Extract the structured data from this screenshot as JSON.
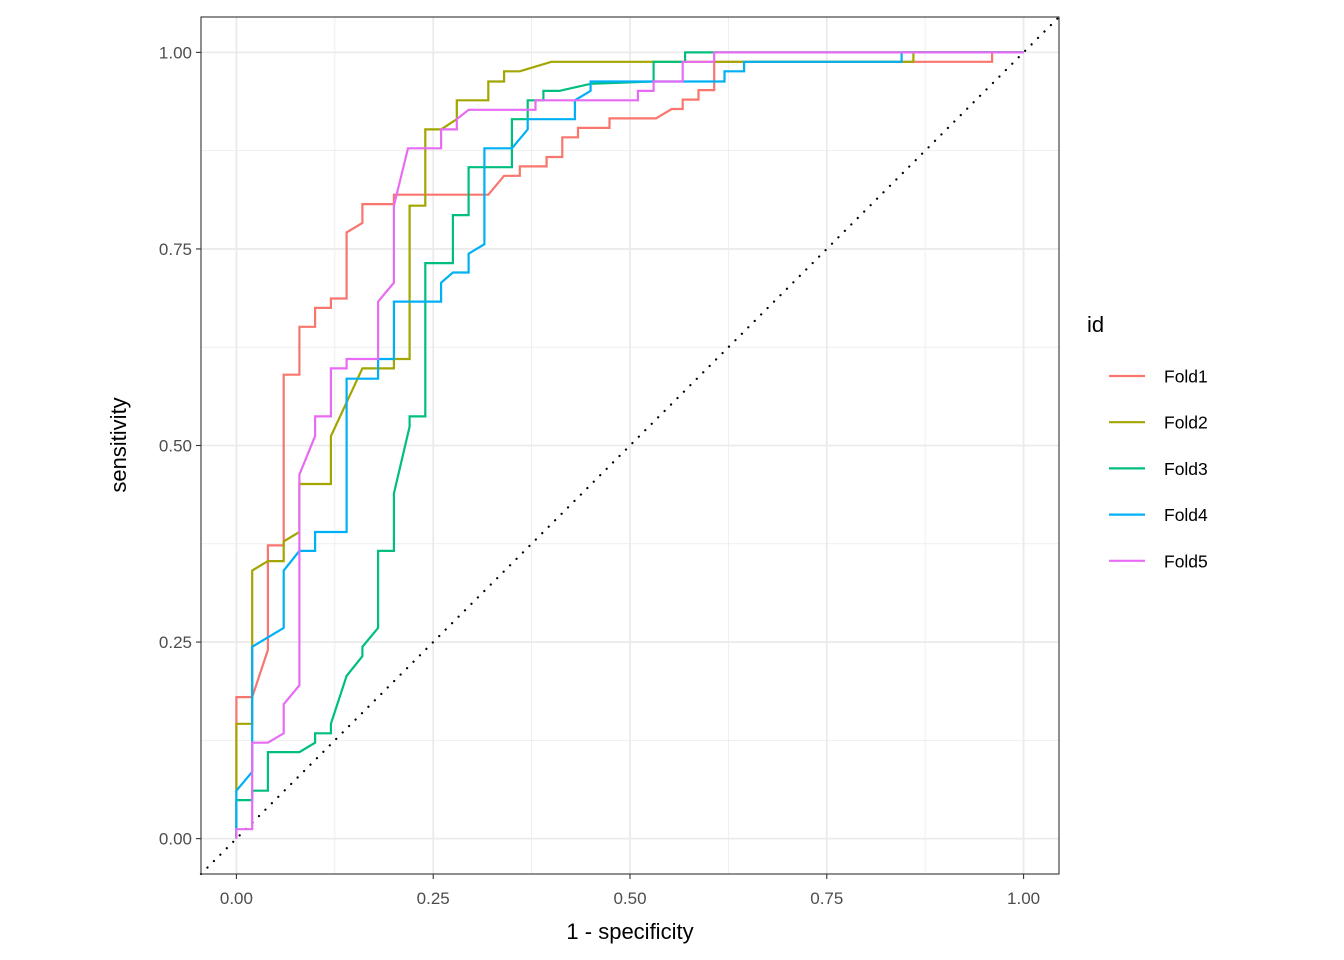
{
  "chart_data": {
    "type": "line",
    "title": "",
    "xlabel": "1 - specificity",
    "ylabel": "sensitivity",
    "xlim": [
      -0.045,
      1.045
    ],
    "ylim": [
      -0.045,
      1.045
    ],
    "x_ticks": [
      0,
      0.25,
      0.5,
      0.75,
      1
    ],
    "x_tick_labels": [
      "0.00",
      "0.25",
      "0.50",
      "0.75",
      "1.00"
    ],
    "y_ticks": [
      0,
      0.25,
      0.5,
      0.75,
      1
    ],
    "y_tick_labels": [
      "0.00",
      "0.25",
      "0.50",
      "0.75",
      "1.00"
    ],
    "grid": true,
    "legend_title": "id",
    "legend_position": "right",
    "reference_line": {
      "type": "diagonal",
      "style": "dotted",
      "color": "#000000"
    },
    "series": [
      {
        "name": "Fold1",
        "color": "#F8766D",
        "points": [
          [
            0,
            0
          ],
          [
            0,
            0.18
          ],
          [
            0.02,
            0.18
          ],
          [
            0.04,
            0.24
          ],
          [
            0.04,
            0.373
          ],
          [
            0.06,
            0.373
          ],
          [
            0.06,
            0.59
          ],
          [
            0.08,
            0.59
          ],
          [
            0.08,
            0.651
          ],
          [
            0.1,
            0.651
          ],
          [
            0.1,
            0.675
          ],
          [
            0.12,
            0.675
          ],
          [
            0.12,
            0.687
          ],
          [
            0.14,
            0.687
          ],
          [
            0.14,
            0.771
          ],
          [
            0.16,
            0.783
          ],
          [
            0.16,
            0.807
          ],
          [
            0.2,
            0.807
          ],
          [
            0.2,
            0.819
          ],
          [
            0.32,
            0.819
          ],
          [
            0.34,
            0.843
          ],
          [
            0.36,
            0.843
          ],
          [
            0.36,
            0.855
          ],
          [
            0.394,
            0.855
          ],
          [
            0.394,
            0.867
          ],
          [
            0.414,
            0.867
          ],
          [
            0.414,
            0.892
          ],
          [
            0.434,
            0.892
          ],
          [
            0.434,
            0.904
          ],
          [
            0.474,
            0.904
          ],
          [
            0.474,
            0.916
          ],
          [
            0.533,
            0.916
          ],
          [
            0.553,
            0.928
          ],
          [
            0.567,
            0.928
          ],
          [
            0.567,
            0.94
          ],
          [
            0.587,
            0.94
          ],
          [
            0.587,
            0.952
          ],
          [
            0.607,
            0.952
          ],
          [
            0.607,
            0.988
          ],
          [
            0.96,
            0.988
          ],
          [
            0.96,
            1
          ],
          [
            1,
            1
          ]
        ]
      },
      {
        "name": "Fold2",
        "color": "#A3A500",
        "points": [
          [
            0,
            0.06
          ],
          [
            0,
            0.146
          ],
          [
            0.02,
            0.146
          ],
          [
            0.02,
            0.341
          ],
          [
            0.04,
            0.353
          ],
          [
            0.06,
            0.353
          ],
          [
            0.06,
            0.378
          ],
          [
            0.08,
            0.39
          ],
          [
            0.08,
            0.451
          ],
          [
            0.12,
            0.451
          ],
          [
            0.12,
            0.512
          ],
          [
            0.16,
            0.598
          ],
          [
            0.2,
            0.598
          ],
          [
            0.2,
            0.61
          ],
          [
            0.22,
            0.61
          ],
          [
            0.22,
            0.805
          ],
          [
            0.24,
            0.805
          ],
          [
            0.24,
            0.902
          ],
          [
            0.26,
            0.902
          ],
          [
            0.26,
            0.902
          ],
          [
            0.28,
            0.915
          ],
          [
            0.28,
            0.939
          ],
          [
            0.32,
            0.939
          ],
          [
            0.32,
            0.963
          ],
          [
            0.34,
            0.963
          ],
          [
            0.34,
            0.976
          ],
          [
            0.36,
            0.976
          ],
          [
            0.4,
            0.988
          ],
          [
            0.86,
            0.988
          ],
          [
            0.86,
            1
          ],
          [
            1,
            1
          ]
        ]
      },
      {
        "name": "Fold3",
        "color": "#00BF7D",
        "points": [
          [
            0,
            0
          ],
          [
            0,
            0.049
          ],
          [
            0.02,
            0.049
          ],
          [
            0.02,
            0.061
          ],
          [
            0.04,
            0.061
          ],
          [
            0.04,
            0.11
          ],
          [
            0.08,
            0.11
          ],
          [
            0.1,
            0.122
          ],
          [
            0.1,
            0.134
          ],
          [
            0.12,
            0.134
          ],
          [
            0.12,
            0.146
          ],
          [
            0.14,
            0.207
          ],
          [
            0.16,
            0.232
          ],
          [
            0.16,
            0.244
          ],
          [
            0.18,
            0.268
          ],
          [
            0.18,
            0.366
          ],
          [
            0.2,
            0.366
          ],
          [
            0.2,
            0.439
          ],
          [
            0.22,
            0.524
          ],
          [
            0.22,
            0.537
          ],
          [
            0.24,
            0.537
          ],
          [
            0.24,
            0.732
          ],
          [
            0.275,
            0.732
          ],
          [
            0.275,
            0.793
          ],
          [
            0.295,
            0.793
          ],
          [
            0.295,
            0.854
          ],
          [
            0.35,
            0.854
          ],
          [
            0.35,
            0.915
          ],
          [
            0.37,
            0.915
          ],
          [
            0.37,
            0.939
          ],
          [
            0.39,
            0.939
          ],
          [
            0.39,
            0.951
          ],
          [
            0.41,
            0.951
          ],
          [
            0.45,
            0.96
          ],
          [
            0.53,
            0.963
          ],
          [
            0.53,
            0.988
          ],
          [
            0.57,
            0.988
          ],
          [
            0.57,
            1
          ],
          [
            1,
            1
          ]
        ]
      },
      {
        "name": "Fold4",
        "color": "#00B0F6",
        "points": [
          [
            0,
            0
          ],
          [
            0,
            0.061
          ],
          [
            0.02,
            0.085
          ],
          [
            0.02,
            0.244
          ],
          [
            0.06,
            0.268
          ],
          [
            0.06,
            0.341
          ],
          [
            0.08,
            0.366
          ],
          [
            0.1,
            0.366
          ],
          [
            0.1,
            0.39
          ],
          [
            0.14,
            0.39
          ],
          [
            0.14,
            0.585
          ],
          [
            0.18,
            0.585
          ],
          [
            0.18,
            0.61
          ],
          [
            0.2,
            0.61
          ],
          [
            0.2,
            0.683
          ],
          [
            0.26,
            0.683
          ],
          [
            0.26,
            0.707
          ],
          [
            0.275,
            0.72
          ],
          [
            0.295,
            0.72
          ],
          [
            0.295,
            0.744
          ],
          [
            0.315,
            0.756
          ],
          [
            0.315,
            0.878
          ],
          [
            0.35,
            0.878
          ],
          [
            0.37,
            0.902
          ],
          [
            0.37,
            0.915
          ],
          [
            0.43,
            0.915
          ],
          [
            0.43,
            0.939
          ],
          [
            0.45,
            0.951
          ],
          [
            0.45,
            0.963
          ],
          [
            0.62,
            0.963
          ],
          [
            0.62,
            0.976
          ],
          [
            0.645,
            0.976
          ],
          [
            0.645,
            0.988
          ],
          [
            0.845,
            0.988
          ],
          [
            0.845,
            1
          ],
          [
            1,
            1
          ]
        ]
      },
      {
        "name": "Fold5",
        "color": "#E76BF3",
        "points": [
          [
            0,
            0
          ],
          [
            0,
            0.012
          ],
          [
            0.02,
            0.012
          ],
          [
            0.02,
            0.122
          ],
          [
            0.04,
            0.122
          ],
          [
            0.06,
            0.134
          ],
          [
            0.06,
            0.171
          ],
          [
            0.08,
            0.195
          ],
          [
            0.08,
            0.463
          ],
          [
            0.1,
            0.512
          ],
          [
            0.1,
            0.537
          ],
          [
            0.12,
            0.537
          ],
          [
            0.12,
            0.598
          ],
          [
            0.14,
            0.598
          ],
          [
            0.14,
            0.61
          ],
          [
            0.18,
            0.61
          ],
          [
            0.18,
            0.683
          ],
          [
            0.2,
            0.707
          ],
          [
            0.2,
            0.805
          ],
          [
            0.218,
            0.878
          ],
          [
            0.26,
            0.878
          ],
          [
            0.26,
            0.902
          ],
          [
            0.28,
            0.902
          ],
          [
            0.28,
            0.915
          ],
          [
            0.295,
            0.927
          ],
          [
            0.38,
            0.927
          ],
          [
            0.38,
            0.939
          ],
          [
            0.51,
            0.939
          ],
          [
            0.51,
            0.951
          ],
          [
            0.53,
            0.951
          ],
          [
            0.53,
            0.963
          ],
          [
            0.567,
            0.963
          ],
          [
            0.567,
            0.988
          ],
          [
            0.607,
            0.988
          ],
          [
            0.607,
            1
          ],
          [
            1,
            1
          ]
        ]
      }
    ]
  }
}
